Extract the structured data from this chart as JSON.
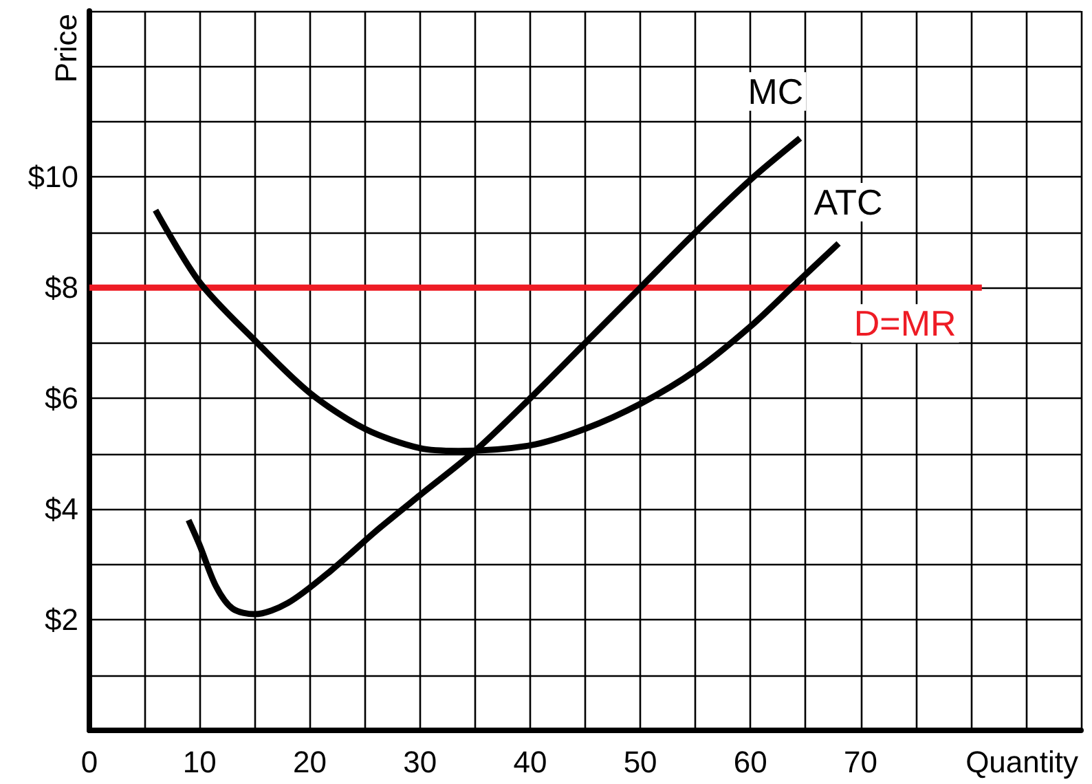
{
  "chart_data": {
    "type": "line",
    "xlabel": "Quantity",
    "ylabel": "Price",
    "xlim": [
      0,
      90
    ],
    "ylim": [
      0,
      13
    ],
    "xticks": [
      0,
      {
        "value": 5,
        "label": null
      },
      10,
      {
        "value": 15,
        "label": null
      },
      20,
      {
        "value": 25,
        "label": null
      },
      30,
      {
        "value": 35,
        "label": null
      },
      40,
      {
        "value": 45,
        "label": null
      },
      50,
      {
        "value": 55,
        "label": null
      },
      60,
      {
        "value": 65,
        "label": null
      },
      70,
      {
        "value": 75,
        "label": null
      },
      {
        "value": 80,
        "label": null
      },
      {
        "value": 85,
        "label": null
      },
      {
        "value": 90,
        "label": null
      }
    ],
    "yticks": [
      {
        "value": 0,
        "label": null
      },
      {
        "value": 1,
        "label": null
      },
      {
        "value": 2,
        "label": "$2"
      },
      {
        "value": 3,
        "label": null
      },
      {
        "value": 4,
        "label": "$4"
      },
      {
        "value": 5,
        "label": null
      },
      {
        "value": 6,
        "label": "$6"
      },
      {
        "value": 7,
        "label": null
      },
      {
        "value": 8,
        "label": "$8"
      },
      {
        "value": 9,
        "label": null
      },
      {
        "value": 10,
        "label": "$10"
      },
      {
        "value": 11,
        "label": null
      },
      {
        "value": 12,
        "label": null
      },
      {
        "value": 13,
        "label": null
      }
    ],
    "grid": true,
    "legend": false,
    "marker": "none",
    "line_style": "solid",
    "series": [
      {
        "name": "MC",
        "color": "#000000",
        "x": [
          9,
          10,
          11.5,
          13,
          15,
          18,
          22,
          26,
          30,
          35,
          40,
          45,
          50,
          55,
          60,
          64.5
        ],
        "values": [
          3.8,
          3.35,
          2.6,
          2.2,
          2.1,
          2.3,
          2.9,
          3.6,
          4.25,
          5.05,
          6,
          7,
          8,
          9,
          9.95,
          10.7
        ]
      },
      {
        "name": "ATC",
        "color": "#000000",
        "x": [
          6,
          10,
          15,
          20,
          25,
          30,
          33.5,
          40,
          45,
          50,
          55,
          60,
          64,
          68
        ],
        "values": [
          9.4,
          8.1,
          7.05,
          6.1,
          5.45,
          5.1,
          5.05,
          5.15,
          5.45,
          5.9,
          6.5,
          7.3,
          8.05,
          8.8
        ]
      },
      {
        "name": "D=MR",
        "color": "#ee1c25",
        "x": [
          0,
          81
        ],
        "values": [
          8,
          8
        ]
      }
    ]
  }
}
